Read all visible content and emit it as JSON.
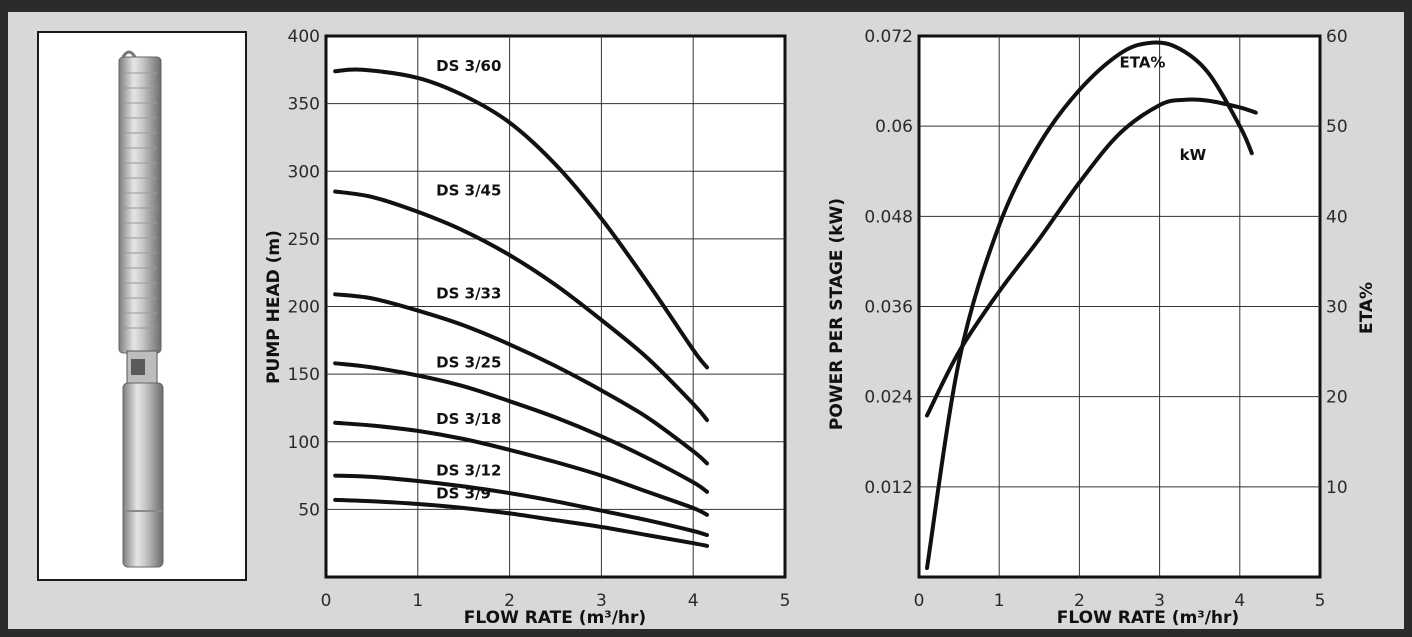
{
  "chart_data": [
    {
      "type": "line",
      "xlabel": "FLOW RATE (m³/hr)",
      "ylabel": "PUMP HEAD (m)",
      "xlim": [
        0,
        5
      ],
      "ylim": [
        0,
        400
      ],
      "xticks": [
        "0",
        "1",
        "2",
        "3",
        "4",
        "5"
      ],
      "yticks": [
        "400",
        "350",
        "300",
        "250",
        "200",
        "150",
        "100",
        "50"
      ],
      "grid": true,
      "series": [
        {
          "name": "DS 3/60",
          "x": [
            0.1,
            0.4,
            1.0,
            1.5,
            2.0,
            2.5,
            3.0,
            3.5,
            4.0,
            4.15
          ],
          "y": [
            374,
            375,
            369,
            356,
            336,
            305,
            265,
            218,
            168,
            155
          ]
        },
        {
          "name": "DS 3/45",
          "x": [
            0.1,
            0.5,
            1.0,
            1.5,
            2.0,
            2.5,
            3.0,
            3.5,
            4.0,
            4.15
          ],
          "y": [
            285,
            281,
            270,
            256,
            238,
            216,
            190,
            162,
            128,
            116
          ]
        },
        {
          "name": "DS 3/33",
          "x": [
            0.1,
            0.5,
            1.0,
            1.5,
            2.0,
            2.5,
            3.0,
            3.5,
            4.0,
            4.15
          ],
          "y": [
            209,
            206,
            197,
            186,
            172,
            156,
            138,
            118,
            93,
            84
          ]
        },
        {
          "name": "DS 3/25",
          "x": [
            0.1,
            0.5,
            1.0,
            1.5,
            2.0,
            2.5,
            3.0,
            3.5,
            4.0,
            4.15
          ],
          "y": [
            158,
            155,
            149,
            141,
            130,
            118,
            104,
            88,
            70,
            63
          ]
        },
        {
          "name": "DS 3/18",
          "x": [
            0.1,
            0.5,
            1.0,
            1.5,
            2.0,
            2.5,
            3.0,
            3.5,
            4.0,
            4.15
          ],
          "y": [
            114,
            112,
            108,
            102,
            94,
            85,
            75,
            63,
            51,
            46
          ]
        },
        {
          "name": "DS 3/12",
          "x": [
            0.1,
            0.5,
            1.0,
            1.5,
            2.0,
            2.5,
            3.0,
            3.5,
            4.0,
            4.15
          ],
          "y": [
            75,
            74,
            71,
            67,
            62,
            56,
            49,
            42,
            34,
            31
          ]
        },
        {
          "name": "DS 3/9",
          "x": [
            0.1,
            0.5,
            1.0,
            1.5,
            2.0,
            2.5,
            3.0,
            3.5,
            4.0,
            4.15
          ],
          "y": [
            57,
            56,
            54,
            51,
            47,
            42,
            37,
            31,
            25,
            23
          ]
        }
      ]
    },
    {
      "type": "line",
      "xlabel": "FLOW RATE (m³/hr)",
      "ylabel": "POWER PER STAGE (kW)",
      "y2label": "ETA%",
      "xlim": [
        0,
        5
      ],
      "ylim": [
        0,
        0.072
      ],
      "y2lim": [
        0,
        60
      ],
      "xticks": [
        "0",
        "1",
        "2",
        "3",
        "4",
        "5"
      ],
      "yticks": [
        "0.072",
        "0.06",
        "0.048",
        "0.036",
        "0.024",
        "0.012"
      ],
      "y2ticks": [
        "60",
        "50",
        "40",
        "30",
        "20",
        "10"
      ],
      "grid": true,
      "series": [
        {
          "name": "ETA%",
          "axis": "right",
          "x": [
            0.1,
            0.5,
            1.0,
            1.5,
            2.0,
            2.5,
            2.85,
            3.2,
            3.6,
            4.0,
            4.15
          ],
          "y": [
            1,
            24,
            39,
            48,
            54,
            58,
            59.2,
            58.8,
            56,
            50,
            47
          ]
        },
        {
          "name": "kW",
          "axis": "left",
          "x": [
            0.1,
            0.5,
            1.0,
            1.5,
            2.0,
            2.5,
            3.0,
            3.3,
            3.6,
            4.0,
            4.2
          ],
          "y": [
            0.0215,
            0.03,
            0.038,
            0.045,
            0.0525,
            0.059,
            0.0628,
            0.0635,
            0.0634,
            0.0625,
            0.0618
          ]
        }
      ]
    }
  ]
}
